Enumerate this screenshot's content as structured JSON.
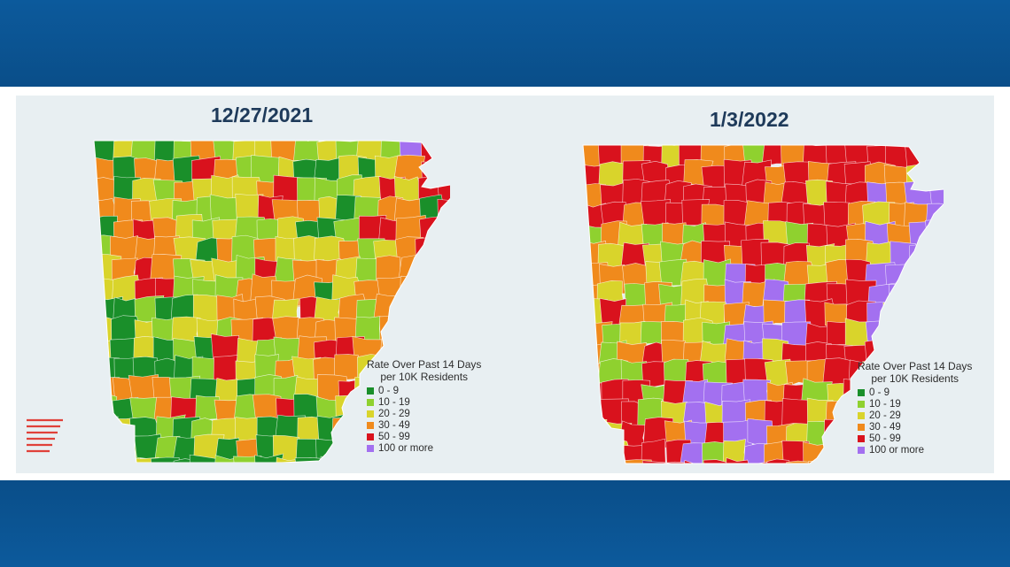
{
  "maps": [
    {
      "title": "12/27/2021",
      "legend": {
        "title_line1": "Rate Over Past 14 Days",
        "title_line2": "per 10K Residents",
        "items": [
          {
            "label": "0 - 9",
            "color": "#1a8f2a"
          },
          {
            "label": "10 - 19",
            "color": "#8fd12f"
          },
          {
            "label": "20 - 29",
            "color": "#d9d42b"
          },
          {
            "label": "30 - 49",
            "color": "#f08a1c"
          },
          {
            "label": "50 - 99",
            "color": "#d9121d"
          },
          {
            "label": "100 or more",
            "color": "#a370f0"
          }
        ]
      }
    },
    {
      "title": "1/3/2022",
      "legend": {
        "title_line1": "Rate Over Past 14 Days",
        "title_line2": "per 10K Residents",
        "items": [
          {
            "label": "0 - 9",
            "color": "#1a8f2a"
          },
          {
            "label": "10 - 19",
            "color": "#8fd12f"
          },
          {
            "label": "20 - 29",
            "color": "#d9d42b"
          },
          {
            "label": "30 - 49",
            "color": "#f08a1c"
          },
          {
            "label": "50 - 99",
            "color": "#d9121d"
          },
          {
            "label": "100 or more",
            "color": "#a370f0"
          }
        ]
      }
    }
  ]
}
